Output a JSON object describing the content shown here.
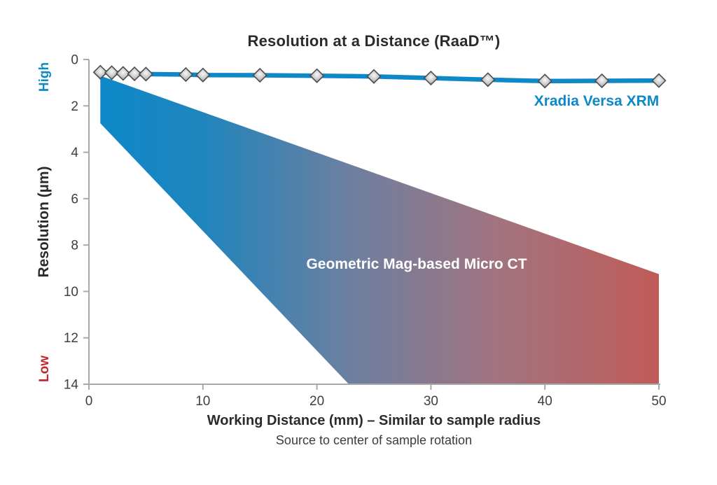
{
  "colors": {
    "line_blue": "#0E88C8",
    "high_label_blue": "#0E88C8",
    "low_label_red": "#C1272D",
    "wedge_red_end": "#C05B58",
    "axis_gray": "#A7A9AC",
    "tick_text": "#3F3F3F",
    "title_text": "#2B2B2B",
    "marker_stroke": "#4D4D4D",
    "band_label_text": "#FFFFFF"
  },
  "chart_data": {
    "type": "line",
    "title": "Resolution at a Distance (RaaD™)",
    "xlabel": "Working Distance (mm) – Similar to sample radius",
    "xlabel_subtitle": "Source to center of sample rotation",
    "ylabel": "Resolution (µm)",
    "axis_annotations": {
      "top": "High",
      "bottom": "Low"
    },
    "xlim": [
      0,
      50
    ],
    "ylim": [
      0,
      14
    ],
    "y_axis_inverted": true,
    "grid": false,
    "x_ticks": [
      0,
      10,
      20,
      30,
      40,
      50
    ],
    "y_ticks": [
      0,
      2,
      4,
      6,
      8,
      10,
      12,
      14
    ],
    "series": [
      {
        "name": "Xradia Versa XRM",
        "type": "line",
        "color": "#0E88C8",
        "marker": "diamond",
        "x": [
          1,
          2,
          3,
          4,
          5,
          8.5,
          10,
          15,
          20,
          25,
          30,
          35,
          40,
          45,
          50
        ],
        "y": [
          0.55,
          0.57,
          0.6,
          0.62,
          0.63,
          0.65,
          0.67,
          0.68,
          0.7,
          0.73,
          0.8,
          0.87,
          0.93,
          0.92,
          0.91
        ]
      },
      {
        "name": "Geometric Mag-based Micro CT",
        "type": "band",
        "gradient_stops": [
          {
            "offset": 0.0,
            "color": "#0E88C8"
          },
          {
            "offset": 0.18,
            "color": "#1E85BD"
          },
          {
            "offset": 0.45,
            "color": "#6E7FA0"
          },
          {
            "offset": 0.72,
            "color": "#A3737E"
          },
          {
            "offset": 1.0,
            "color": "#C05B58"
          }
        ],
        "upper": {
          "x": [
            1,
            50
          ],
          "y": [
            0.7,
            9.25
          ]
        },
        "lower": {
          "x": [
            1,
            22.8,
            50
          ],
          "y": [
            2.75,
            14,
            14
          ]
        }
      }
    ]
  }
}
